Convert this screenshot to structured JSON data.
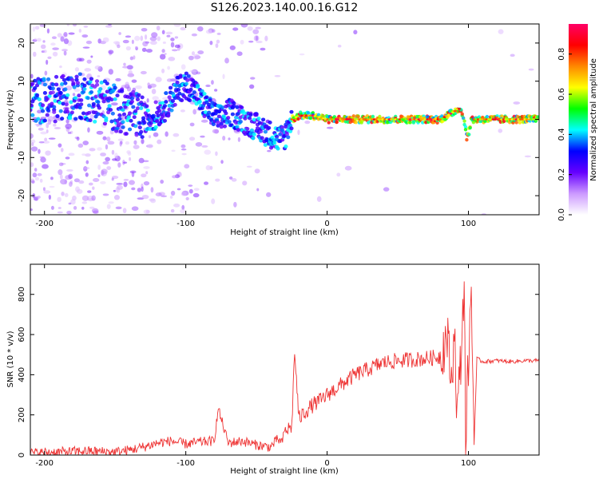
{
  "title": "S126.2023.140.00.16.G12",
  "chart_data": [
    {
      "type": "heatmap",
      "xlabel": "Height of straight line (km)",
      "ylabel": "Frequency (Hz)",
      "xlim": [
        -210,
        150
      ],
      "ylim": [
        -25,
        25
      ],
      "xticks": [
        -200,
        -100,
        0,
        100
      ],
      "yticks": [
        -20,
        -10,
        0,
        10,
        20
      ],
      "colorbar": {
        "label": "Normalized spectral amplitude",
        "range": [
          0,
          0.95
        ],
        "ticks": [
          "0.0",
          "0.2",
          "0.4",
          "0.6",
          "0.8"
        ],
        "colormap": [
          "#ffffff",
          "#cc99ff",
          "#6600ff",
          "#0000ff",
          "#00ffff",
          "#00ff00",
          "#ffff00",
          "#ff8800",
          "#ff0000",
          "#ff0066"
        ]
      },
      "ridge": {
        "x": [
          -210,
          -195,
          -185,
          -175,
          -160,
          -145,
          -135,
          -125,
          -115,
          -105,
          -100,
          -95,
          -90,
          -85,
          -80,
          -75,
          -70,
          -65,
          -60,
          -55,
          -50,
          -45,
          -40,
          -35,
          -30,
          -28,
          -25,
          -20,
          -10,
          0,
          10,
          20,
          30,
          40,
          50,
          60,
          70,
          80,
          85,
          90,
          93,
          95,
          97,
          99,
          100,
          102,
          110,
          120,
          130,
          140,
          150
        ],
        "y": [
          5,
          5,
          6,
          6,
          5,
          2,
          1,
          0,
          3,
          8,
          9,
          8,
          5,
          3,
          1,
          0,
          2,
          1,
          0,
          -1,
          -2,
          -3,
          -4,
          -5,
          -5,
          -2,
          0,
          1,
          1,
          0,
          0,
          0,
          0,
          0,
          0,
          0,
          0,
          0,
          1,
          2,
          3,
          2,
          0,
          -5,
          -4,
          0,
          0,
          0,
          0,
          0,
          0
        ]
      }
    },
    {
      "type": "line",
      "xlabel": "Height of straight line (km)",
      "ylabel": "SNR (10 * v/v)",
      "xlim": [
        -210,
        150
      ],
      "ylim": [
        0,
        950
      ],
      "xticks": [
        -200,
        -100,
        0,
        100
      ],
      "yticks": [
        0,
        200,
        400,
        600,
        800
      ],
      "color": "#ee3333",
      "series": [
        {
          "x": [
            -210,
            -190,
            -170,
            -150,
            -140,
            -130,
            -120,
            -110,
            -100,
            -90,
            -80,
            -77,
            -70,
            -60,
            -50,
            -40,
            -35,
            -32,
            -30,
            -25,
            -23,
            -20,
            -15,
            -10,
            -5,
            0,
            10,
            20,
            30,
            40,
            50,
            60,
            70,
            80,
            85,
            88,
            90,
            92,
            95,
            97,
            98,
            100,
            102,
            104,
            106,
            110,
            120,
            130,
            140,
            150
          ],
          "y": [
            10,
            15,
            20,
            15,
            25,
            40,
            60,
            70,
            55,
            65,
            70,
            230,
            60,
            70,
            50,
            40,
            80,
            60,
            120,
            140,
            520,
            180,
            220,
            250,
            270,
            300,
            350,
            400,
            430,
            460,
            470,
            475,
            480,
            490,
            600,
            350,
            650,
            200,
            520,
            900,
            80,
            460,
            820,
            60,
            480,
            465,
            470,
            465,
            470,
            470
          ]
        }
      ]
    }
  ]
}
